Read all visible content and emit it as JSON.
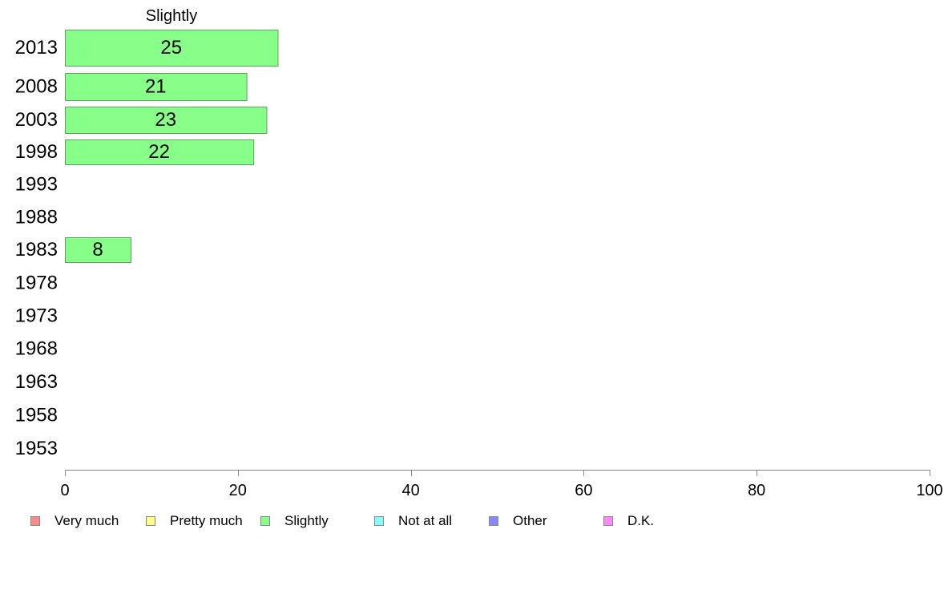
{
  "chart_data": {
    "type": "bar",
    "orientation": "horizontal",
    "title": "Slightly",
    "categories": [
      "2013",
      "2008",
      "2003",
      "1998",
      "1993",
      "1988",
      "1983",
      "1978",
      "1973",
      "1968",
      "1963",
      "1958",
      "1953"
    ],
    "series": [
      {
        "name": "Slightly",
        "color": "#88ff88",
        "values": [
          25,
          21,
          23,
          22,
          null,
          null,
          8,
          null,
          null,
          null,
          null,
          null,
          null
        ],
        "bar_lengths": [
          24.6,
          21.0,
          23.3,
          21.8,
          null,
          null,
          7.6,
          null,
          null,
          null,
          null,
          null,
          null
        ]
      }
    ],
    "xlim": [
      0,
      100
    ],
    "xticks": [
      0,
      20,
      40,
      60,
      80,
      100
    ],
    "xlabel": "",
    "ylabel": "",
    "grid": false,
    "legend_position": "bottom",
    "legend": [
      {
        "label": "Very much",
        "color": "#ff8888"
      },
      {
        "label": "Pretty much",
        "color": "#ffff88"
      },
      {
        "label": "Slightly",
        "color": "#88ff88"
      },
      {
        "label": "Not at all",
        "color": "#88ffff"
      },
      {
        "label": "Other",
        "color": "#8888ff"
      },
      {
        "label": "D.K.",
        "color": "#ff88ff"
      }
    ]
  }
}
